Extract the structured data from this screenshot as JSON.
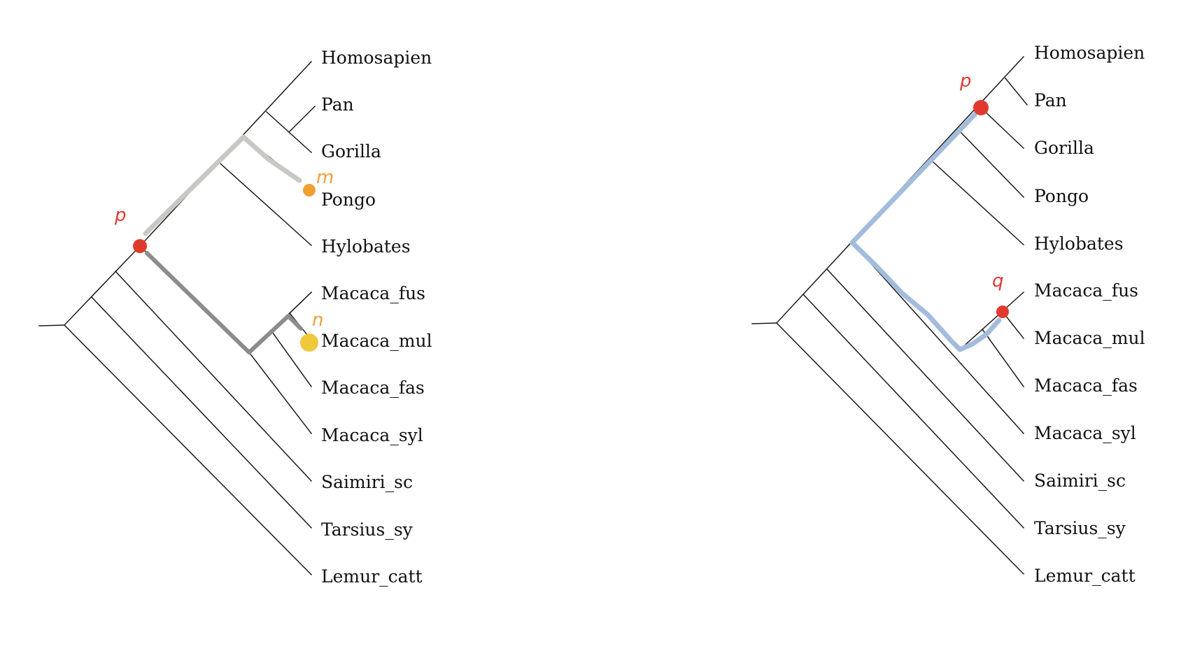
{
  "colors": {
    "edge": "#1a1a1a",
    "path_light_gray": "#c8c8c4",
    "path_dark_gray": "#8c8c8c",
    "path_blue": "#a4bcdc",
    "node_red": "#e03a2e",
    "node_orange": "#f0a030",
    "node_yellow": "#f0c83c",
    "label_red": "#e03a2e",
    "label_orange": "#eca13a"
  },
  "trees": [
    {
      "name": "left-tree",
      "taxa": [
        "Homosapien",
        "Pan",
        "Gorilla",
        "Pongo",
        "Hylobates",
        "Macaca_fus",
        "Macaca_mul",
        "Macaca_fas",
        "Macaca_syl",
        "Saimiri_sc",
        "Tarsius_sy",
        "Lemur_catt"
      ],
      "annotations": [
        {
          "label": "p",
          "color": "label_red"
        },
        {
          "label": "m",
          "color": "label_orange"
        },
        {
          "label": "n",
          "color": "label_orange"
        }
      ]
    },
    {
      "name": "right-tree",
      "taxa": [
        "Homosapien",
        "Pan",
        "Gorilla",
        "Pongo",
        "Hylobates",
        "Macaca_fus",
        "Macaca_mul",
        "Macaca_fas",
        "Macaca_syl",
        "Saimiri_sc",
        "Tarsius_sy",
        "Lemur_catt"
      ],
      "annotations": [
        {
          "label": "p",
          "color": "label_red"
        },
        {
          "label": "q",
          "color": "label_red"
        }
      ]
    }
  ]
}
